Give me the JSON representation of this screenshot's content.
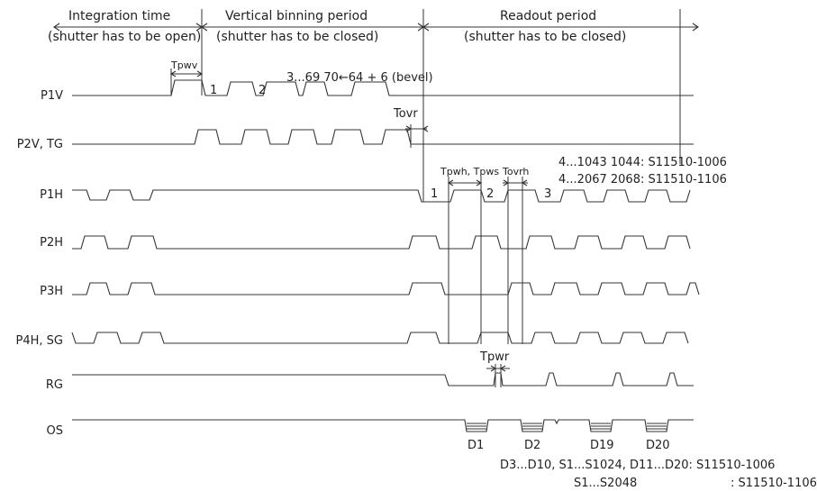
{
  "headers": {
    "integration_title": "Integration time",
    "integration_sub": "(shutter has to be open)",
    "vertical_title": "Vertical binning period",
    "vertical_sub": "(shutter has to be closed)",
    "readout_title": "Readout period",
    "readout_sub": "(shutter has to be closed)"
  },
  "signals": [
    "P1V",
    "P2V, TG",
    "P1H",
    "P2H",
    "P3H",
    "P4H, SG",
    "RG",
    "OS"
  ],
  "annotations": {
    "tpwv": "Tpwv",
    "tovr": "Tovr",
    "tpwh_tpws": "Tpwh, Tpws",
    "tovrh": "Tovrh",
    "tpwr": "Tpwr",
    "v_num_1": "1",
    "v_num_2": "2",
    "v_seq": "3...69 70←64 + 6 (bevel)",
    "h_num_1": "1",
    "h_num_2": "2",
    "h_num_3": "3",
    "h_count_1006": "4...1043 1044: S11510-1006",
    "h_count_1106": "4...2067 2068: S11510-1106",
    "d1": "D1",
    "d2": "D2",
    "d19": "D19",
    "d20": "D20",
    "os_note_1": "D3...D10, S1...S1024, D11...D20: S11510-1006",
    "os_note_2_left": "S1...S2048",
    "os_note_2_right": ": S11510-1106"
  }
}
